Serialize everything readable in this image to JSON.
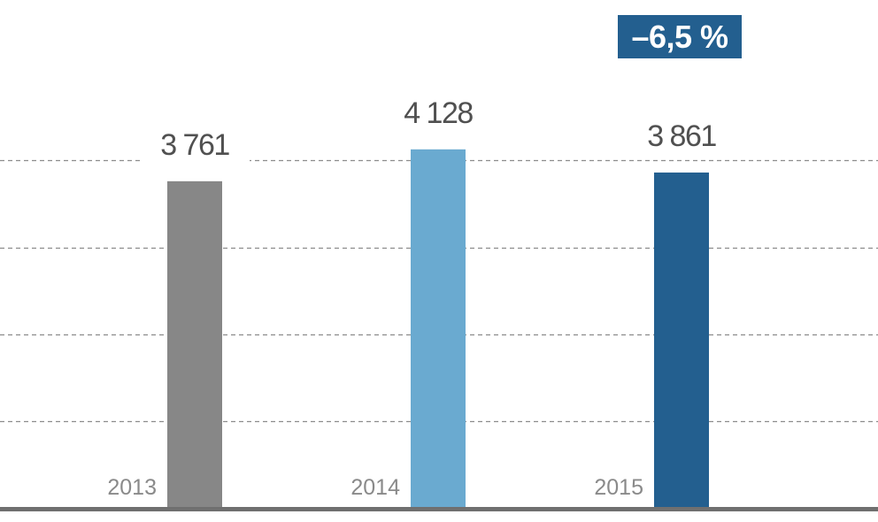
{
  "chart_data": {
    "type": "bar",
    "categories": [
      "2013",
      "2014",
      "2015"
    ],
    "values": [
      3761,
      4128,
      3861
    ],
    "value_labels": [
      "3 761",
      "4 128",
      "3 861"
    ],
    "bar_colors": [
      "#878787",
      "#6aaad0",
      "#235f8f"
    ],
    "ylim": [
      0,
      4880
    ],
    "grid": true,
    "gridline_values": [
      1000,
      2000,
      3000,
      4000
    ],
    "baseline_color": "#6f6f6f",
    "badge": {
      "text": "–6,5 %",
      "color": "#235f8f",
      "text_color": "#ffffff"
    },
    "label_color": "#505050",
    "year_color": "#8a8a8a"
  }
}
